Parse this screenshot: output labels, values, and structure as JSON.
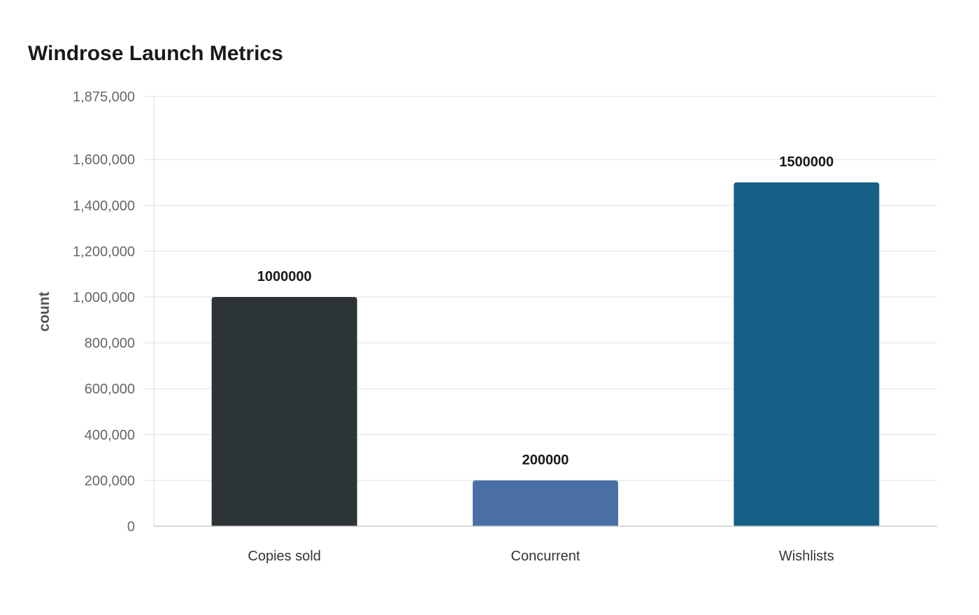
{
  "chart_data": {
    "type": "bar",
    "title": "Windrose Launch Metrics",
    "xlabel": "",
    "ylabel": "count",
    "categories": [
      "Copies sold",
      "Concurrent",
      "Wishlists"
    ],
    "values": [
      1000000,
      200000,
      1500000
    ],
    "data_labels": [
      "1000000",
      "200000",
      "1500000"
    ],
    "colors": [
      "#2d3436",
      "#4a6fa5",
      "#166088"
    ],
    "ylim": [
      0,
      1875000
    ],
    "yticks": [
      0,
      200000,
      400000,
      600000,
      800000,
      1000000,
      1200000,
      1400000,
      1600000,
      1875000
    ],
    "ytick_labels": [
      "0",
      "200,000",
      "400,000",
      "600,000",
      "800,000",
      "1,000,000",
      "1,200,000",
      "1,400,000",
      "1,600,000",
      "1,875,000"
    ],
    "grid": true,
    "legend": "none"
  }
}
